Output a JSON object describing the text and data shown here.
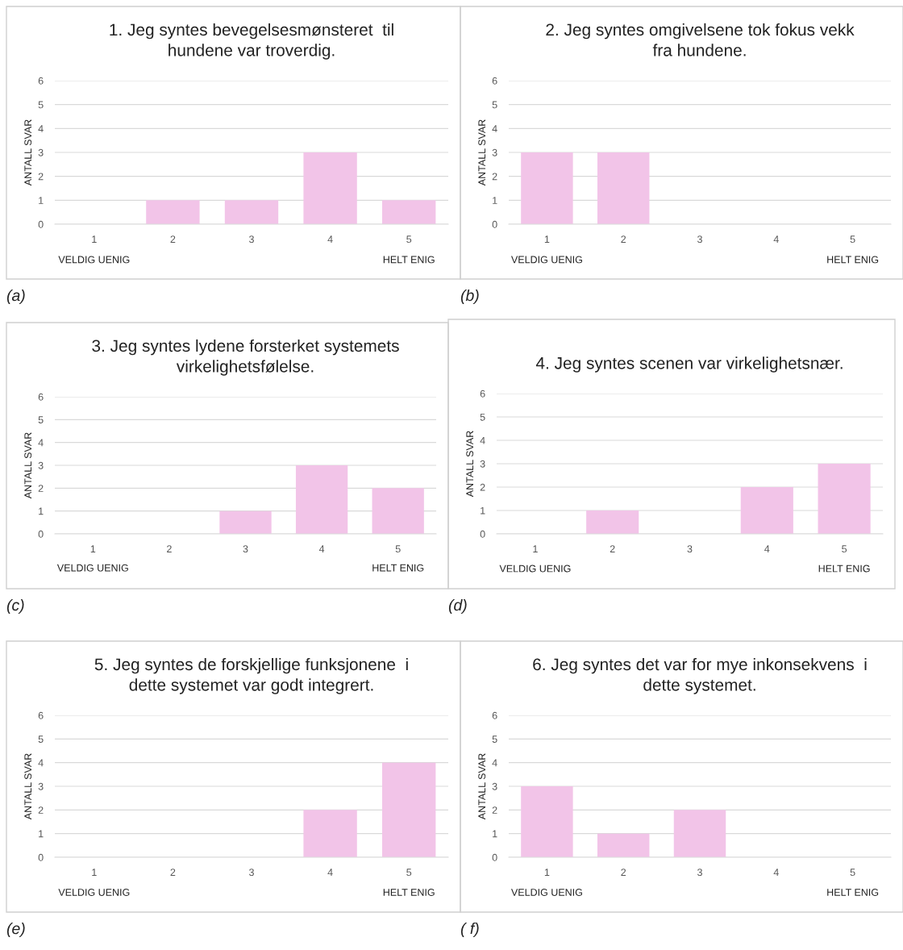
{
  "chart_data": [
    {
      "type": "bar",
      "title": "1. Jeg syntes bevegelsesmønsteret  til\nhundene var troverdig.",
      "ylabel": "ANTALL SVAR",
      "categories": [
        "1",
        "2",
        "3",
        "4",
        "5"
      ],
      "values": [
        0,
        1,
        1,
        3,
        1
      ],
      "color": "#f2c4e8",
      "ylim": [
        0,
        6
      ],
      "yticks": [
        0,
        1,
        2,
        3,
        4,
        5,
        6
      ],
      "grid": "y",
      "annotations": [
        "VELDIG UENIG",
        "HELT ENIG",
        "(a)"
      ]
    },
    {
      "type": "bar",
      "title": "2. Jeg syntes omgivelsene tok fokus vekk\nfra hundene.",
      "ylabel": "ANTALL SVAR",
      "categories": [
        "1",
        "2",
        "3",
        "4",
        "5"
      ],
      "values": [
        3,
        3,
        0,
        0,
        0
      ],
      "color": "#f2c4e8",
      "ylim": [
        0,
        6
      ],
      "yticks": [
        0,
        1,
        2,
        3,
        4,
        5,
        6
      ],
      "grid": "y",
      "annotations": [
        "VELDIG UENIG",
        "HELT ENIG",
        "(b)"
      ]
    },
    {
      "type": "bar",
      "title": "3. Jeg syntes lydene forsterket systemets\nvirkelighetsfølelse.",
      "ylabel": "ANTALL SVAR",
      "categories": [
        "1",
        "2",
        "3",
        "4",
        "5"
      ],
      "values": [
        0,
        0,
        1,
        3,
        2
      ],
      "color": "#f2c4e8",
      "ylim": [
        0,
        6
      ],
      "yticks": [
        0,
        1,
        2,
        3,
        4,
        5,
        6
      ],
      "grid": "y",
      "annotations": [
        "VELDIG UENIG",
        "HELT ENIG",
        "(c)"
      ]
    },
    {
      "type": "bar",
      "title": "4. Jeg syntes scenen var virkelighetsnær.",
      "ylabel": "ANTALL SVAR",
      "categories": [
        "1",
        "2",
        "3",
        "4",
        "5"
      ],
      "values": [
        0,
        1,
        0,
        2,
        3
      ],
      "color": "#f2c4e8",
      "ylim": [
        0,
        6
      ],
      "yticks": [
        0,
        1,
        2,
        3,
        4,
        5,
        6
      ],
      "grid": "y",
      "annotations": [
        "VELDIG UENIG",
        "HELT ENIG",
        "(d)"
      ]
    },
    {
      "type": "bar",
      "title": "5. Jeg syntes de forskjellige funksjonene  i\ndette systemet var godt integrert.",
      "ylabel": "ANTALL SVAR",
      "categories": [
        "1",
        "2",
        "3",
        "4",
        "5"
      ],
      "values": [
        0,
        0,
        0,
        2,
        4
      ],
      "color": "#f2c4e8",
      "ylim": [
        0,
        6
      ],
      "yticks": [
        0,
        1,
        2,
        3,
        4,
        5,
        6
      ],
      "grid": "y",
      "annotations": [
        "VELDIG UENIG",
        "HELT ENIG",
        "(e)"
      ]
    },
    {
      "type": "bar",
      "title": "6. Jeg syntes det var for mye inkonsekvens  i\ndette systemet.",
      "ylabel": "ANTALL SVAR",
      "categories": [
        "1",
        "2",
        "3",
        "4",
        "5"
      ],
      "values": [
        3,
        1,
        2,
        0,
        0
      ],
      "color": "#f2c4e8",
      "ylim": [
        0,
        6
      ],
      "yticks": [
        0,
        1,
        2,
        3,
        4,
        5,
        6
      ],
      "grid": "y",
      "annotations": [
        "VELDIG UENIG",
        "HELT ENIG",
        "( f)"
      ]
    }
  ]
}
